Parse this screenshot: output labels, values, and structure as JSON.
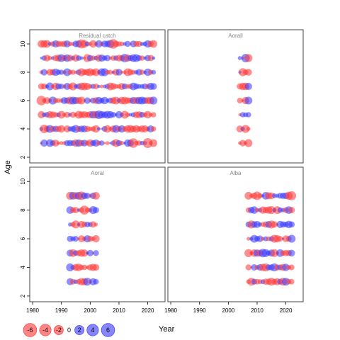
{
  "chart_data": {
    "type": "scatter",
    "description_type": "bubble residual plot (trellis)",
    "xlabel": "Year",
    "ylabel": "Age",
    "xlim": [
      1979,
      2026
    ],
    "ylim": [
      1.6,
      11.0
    ],
    "x_ticks": [
      1980,
      1990,
      2000,
      2010,
      2020
    ],
    "y_ticks": [
      2,
      4,
      6,
      8,
      10
    ],
    "colors": {
      "positive": "#3333ff",
      "negative": "#ff3333",
      "panel_title": "#888888"
    },
    "legend": {
      "placement": "bottom-left",
      "values": [
        "-6",
        "-4",
        "-2",
        "0",
        "2",
        "4",
        "6"
      ]
    },
    "panels": [
      {
        "title": "Residual catch",
        "years": [
          1983,
          2022
        ],
        "ages": [
          3,
          4,
          5,
          6,
          7,
          8,
          9,
          10
        ],
        "highlights": [
          {
            "year": 1982,
            "age": 5,
            "value": 6
          },
          {
            "year": 1983,
            "age": 6,
            "value": -4
          },
          {
            "year": 1984,
            "age": 4,
            "value": -3
          },
          {
            "year": 2008,
            "age": 10,
            "value": -4
          },
          {
            "year": 2015,
            "age": 3,
            "value": -4
          },
          {
            "year": 2020,
            "age": 3,
            "value": -4.5
          },
          {
            "year": 1997,
            "age": 10,
            "value": -3.5
          },
          {
            "year": 2003,
            "age": 5,
            "value": 3
          },
          {
            "year": 2012,
            "age": 9,
            "value": 3
          }
        ]
      },
      {
        "title": "Aorall",
        "years": [
          2004,
          2007
        ],
        "ages": [
          3,
          4,
          5,
          6,
          7,
          8,
          9
        ],
        "highlights": [
          {
            "year": 2006,
            "age": 9,
            "value": 3
          },
          {
            "year": 2007,
            "age": 3,
            "value": -2.5
          }
        ]
      },
      {
        "title": "Aoral",
        "years": [
          1993,
          2002
        ],
        "ages": [
          3,
          4,
          5,
          6,
          7,
          8,
          9
        ],
        "highlights": [
          {
            "year": 1997,
            "age": 9,
            "value": -3
          },
          {
            "year": 1998,
            "age": 8,
            "value": -3.5
          },
          {
            "year": 2001,
            "age": 8,
            "value": 2.5
          },
          {
            "year": 1999,
            "age": 3,
            "value": 2.5
          }
        ]
      },
      {
        "title": "Alba",
        "years": [
          2007,
          2022
        ],
        "ages": [
          3,
          4,
          5,
          6,
          7,
          8,
          9
        ],
        "highlights": [
          {
            "year": 2010,
            "age": 9,
            "value": -3
          },
          {
            "year": 2022,
            "age": 9,
            "value": -3.5
          },
          {
            "year": 2012,
            "age": 5,
            "value": 3
          },
          {
            "year": 2008,
            "age": 3,
            "value": -2.5
          }
        ]
      }
    ]
  }
}
